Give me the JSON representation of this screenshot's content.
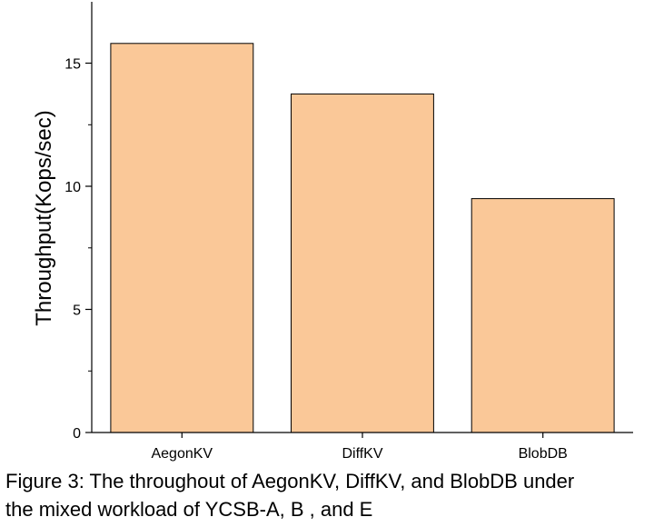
{
  "chart_data": {
    "type": "bar",
    "categories": [
      "AegonKV",
      "DiffKV",
      "BlobDB"
    ],
    "values": [
      15.8,
      13.75,
      9.5
    ],
    "title": "",
    "xlabel": "",
    "ylabel": "Throughput(Kops/sec)",
    "ylim": [
      0,
      17.5
    ],
    "yticks": [
      0,
      5,
      10,
      15
    ],
    "grid": false,
    "legend": "none",
    "bar_color": "#fac898",
    "bar_edge_color": "#000000"
  },
  "caption": {
    "line1": "Figure 3: The throughout of AegonKV, DiffKV, and BlobDB under",
    "line2": "the mixed workload of YCSB-A, B , and E"
  }
}
